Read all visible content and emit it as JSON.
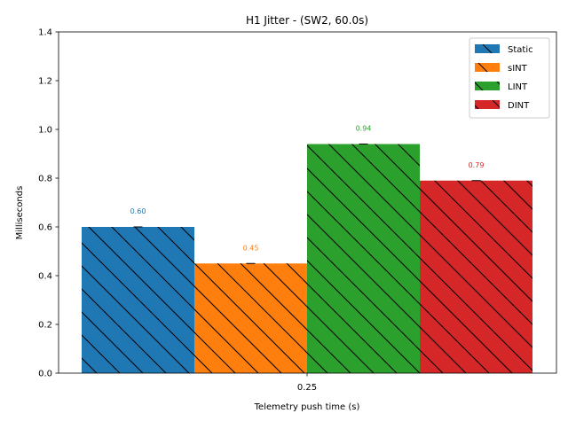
{
  "chart_data": {
    "type": "bar",
    "title": "H1 Jitter - (SW2, 60.0s)",
    "xlabel": "Telemetry push time (s)",
    "ylabel": "Milliseconds",
    "categories": [
      "0.25"
    ],
    "ylim": [
      0,
      1.4
    ],
    "yticks": [
      "0.0",
      "0.2",
      "0.4",
      "0.6",
      "0.8",
      "1.0",
      "1.2",
      "1.4"
    ],
    "series": [
      {
        "name": "Static",
        "values": [
          0.6
        ],
        "label": "0.60",
        "color": "#1f77b4"
      },
      {
        "name": "sINT",
        "values": [
          0.45
        ],
        "label": "0.45",
        "color": "#ff7f0e"
      },
      {
        "name": "LINT",
        "values": [
          0.94
        ],
        "label": "0.94",
        "color": "#2ca02c"
      },
      {
        "name": "DINT",
        "values": [
          0.79
        ],
        "label": "0.79",
        "color": "#d62728"
      }
    ],
    "hatch": "backslash",
    "grid": false,
    "legend": "top-right"
  }
}
